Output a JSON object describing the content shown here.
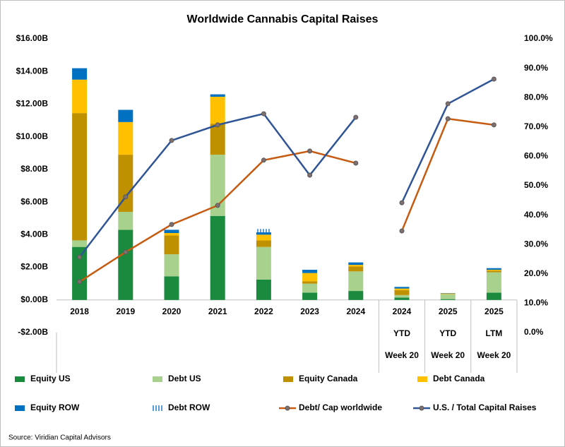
{
  "chart_data": {
    "type": "bar",
    "stacked": true,
    "title": "Worldwide Cannabis Capital Raises",
    "source": "Source: Viridian Capital Advisors",
    "categories": [
      [
        "2018"
      ],
      [
        "2019"
      ],
      [
        "2020"
      ],
      [
        "2021"
      ],
      [
        "2022"
      ],
      [
        "2023"
      ],
      [
        "2024"
      ],
      [
        "2024",
        "YTD",
        "Week 20"
      ],
      [
        "2025",
        "YTD",
        "Week 20"
      ],
      [
        "2025",
        "LTM",
        "Week 20"
      ]
    ],
    "ylim": [
      -2,
      16
    ],
    "yticks": [
      {
        "value": -2,
        "label": "-$2.00B"
      },
      {
        "value": 0,
        "label": "$0.00B"
      },
      {
        "value": 2,
        "label": "$2.00B"
      },
      {
        "value": 4,
        "label": "$4.00B"
      },
      {
        "value": 6,
        "label": "$6.00B"
      },
      {
        "value": 8,
        "label": "$8.00B"
      },
      {
        "value": 10,
        "label": "$10.00B"
      },
      {
        "value": 12,
        "label": "$12.00B"
      },
      {
        "value": 14,
        "label": "$14.00B"
      },
      {
        "value": 16,
        "label": "$16.00B"
      }
    ],
    "y2lim": [
      0,
      100
    ],
    "y2ticks": [
      {
        "value": 0,
        "label": "0.0%"
      },
      {
        "value": 10,
        "label": "10.0%"
      },
      {
        "value": 20,
        "label": "20.0%"
      },
      {
        "value": 30,
        "label": "30.0%"
      },
      {
        "value": 40,
        "label": "40.0%"
      },
      {
        "value": 50,
        "label": "50.0%"
      },
      {
        "value": 60,
        "label": "60.0%"
      },
      {
        "value": 70,
        "label": "70.0%"
      },
      {
        "value": 80,
        "label": "80.0%"
      },
      {
        "value": 90,
        "label": "90.0%"
      },
      {
        "value": 100,
        "label": "100.0%"
      }
    ],
    "grid": false,
    "series": [
      {
        "name": "Equity US",
        "color": "#1a8a3f",
        "values": [
          3.25,
          4.3,
          1.45,
          5.15,
          1.25,
          0.45,
          0.55,
          0.15,
          0.05,
          0.45
        ]
      },
      {
        "name": "Debt US",
        "color": "#a9d18e",
        "values": [
          0.4,
          1.1,
          1.35,
          3.75,
          2.0,
          0.55,
          1.2,
          0.15,
          0.3,
          1.25
        ]
      },
      {
        "name": "Equity Canada",
        "color": "#bf9000",
        "values": [
          7.8,
          3.5,
          1.15,
          1.9,
          0.4,
          0.15,
          0.3,
          0.3,
          0.02,
          0.1
        ]
      },
      {
        "name": "Debt Canada",
        "color": "#ffc000",
        "values": [
          2.05,
          2.0,
          0.15,
          1.65,
          0.35,
          0.5,
          0.1,
          0.1,
          0.03,
          0.05
        ]
      },
      {
        "name": "Equity ROW",
        "color": "#0070c0",
        "values": [
          0.7,
          0.75,
          0.2,
          0.15,
          0.15,
          0.2,
          0.15,
          0.1,
          0.02,
          0.1
        ]
      },
      {
        "name": "Debt ROW",
        "color": "#9dc3e6",
        "pattern": "striped",
        "values": [
          0,
          0,
          0,
          0,
          0.2,
          0,
          0,
          0,
          0,
          0
        ]
      },
      {
        "name": "Debt/ Cap worldwide",
        "type": "line",
        "axis": "y2",
        "color": "#c55a11",
        "values": [
          17.3,
          27.4,
          36.8,
          43.3,
          58.7,
          61.8,
          57.7,
          34.6,
          72.8,
          70.7
        ]
      },
      {
        "name": "U.S. / Total Capital Raises",
        "type": "line",
        "axis": "y2",
        "color": "#2f5597",
        "values": [
          25.7,
          46.2,
          65.4,
          70.7,
          74.5,
          53.6,
          73.3,
          44.2,
          77.9,
          86.3
        ]
      }
    ]
  }
}
